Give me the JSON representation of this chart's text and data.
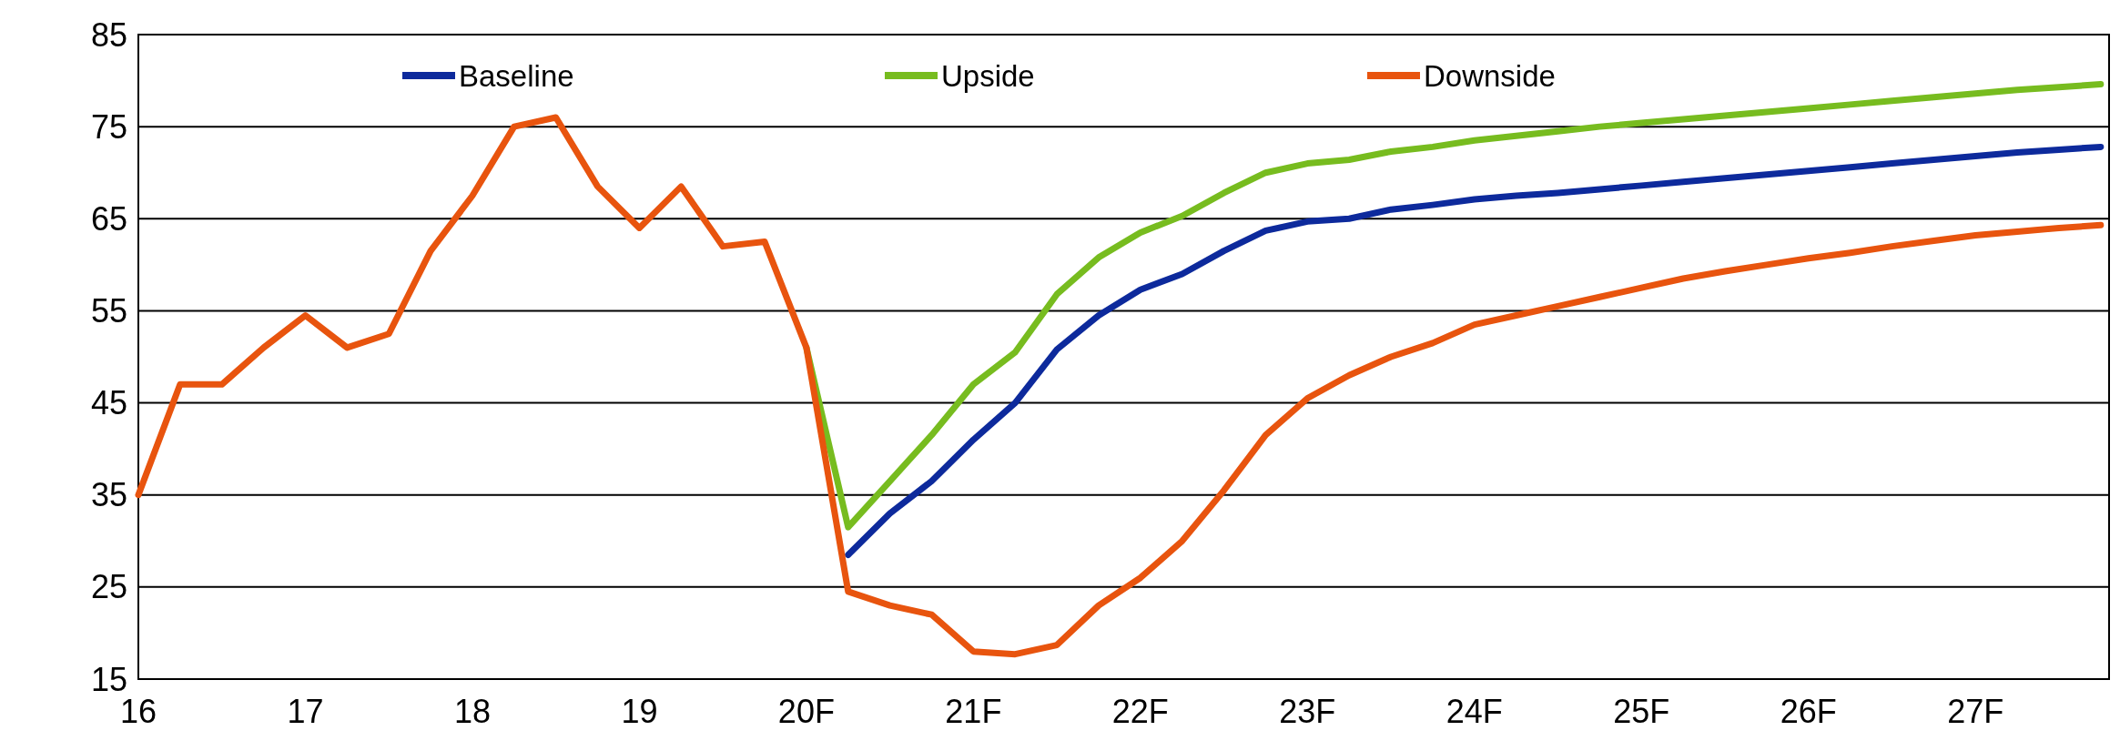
{
  "chart_data": {
    "type": "line",
    "categories": [
      "16",
      null,
      null,
      null,
      "17",
      null,
      null,
      null,
      "18",
      null,
      null,
      null,
      "19",
      null,
      null,
      null,
      "20F",
      null,
      null,
      null,
      "21F",
      null,
      null,
      null,
      "22F",
      null,
      null,
      null,
      "23F",
      null,
      null,
      null,
      "24F",
      null,
      null,
      null,
      "25F",
      null,
      null,
      null,
      "26F",
      null,
      null,
      null,
      "27F",
      null,
      null,
      null
    ],
    "series": [
      {
        "name": "Baseline",
        "color": "#0d2a9c",
        "values": [
          null,
          null,
          null,
          null,
          null,
          null,
          null,
          null,
          null,
          null,
          null,
          null,
          null,
          null,
          null,
          null,
          null,
          28.5,
          33,
          36.5,
          41,
          45,
          50.8,
          54.5,
          57.3,
          59,
          61.5,
          63.7,
          64.7,
          65,
          66,
          66.5,
          67.1,
          67.5,
          67.8,
          68.2,
          68.6,
          69,
          69.4,
          69.8,
          70.2,
          70.6,
          71,
          71.4,
          71.8,
          72.2,
          72.5,
          72.8
        ]
      },
      {
        "name": "Upside",
        "color": "#77bc1f",
        "values": [
          null,
          null,
          null,
          null,
          null,
          null,
          null,
          null,
          null,
          null,
          null,
          null,
          null,
          null,
          null,
          null,
          51,
          31.5,
          36.5,
          41.5,
          47,
          50.5,
          56.8,
          60.8,
          63.5,
          65.3,
          67.8,
          70,
          71,
          71.4,
          72.3,
          72.8,
          73.5,
          74,
          74.5,
          75,
          75.4,
          75.8,
          76.2,
          76.6,
          77,
          77.4,
          77.8,
          78.2,
          78.6,
          79,
          79.3,
          79.6
        ]
      },
      {
        "name": "Downside",
        "color": "#e8540e",
        "values": [
          35,
          47,
          47,
          51,
          54.5,
          51,
          52.5,
          61.5,
          67.5,
          75,
          76,
          68.5,
          64,
          68.5,
          62,
          62.5,
          51,
          24.5,
          23,
          22,
          18,
          17.7,
          18.7,
          23,
          26,
          30,
          35.5,
          41.5,
          45.5,
          48,
          50,
          51.5,
          53.5,
          54.5,
          55.5,
          56.5,
          57.5,
          58.5,
          59.3,
          60,
          60.7,
          61.3,
          62,
          62.6,
          63.2,
          63.6,
          64,
          64.3
        ]
      }
    ],
    "ylim": [
      15,
      85
    ],
    "yticks": [
      15,
      25,
      35,
      45,
      55,
      65,
      75,
      85
    ],
    "grid": "y",
    "legend": "top",
    "line_style": "solid",
    "marker": "none"
  }
}
